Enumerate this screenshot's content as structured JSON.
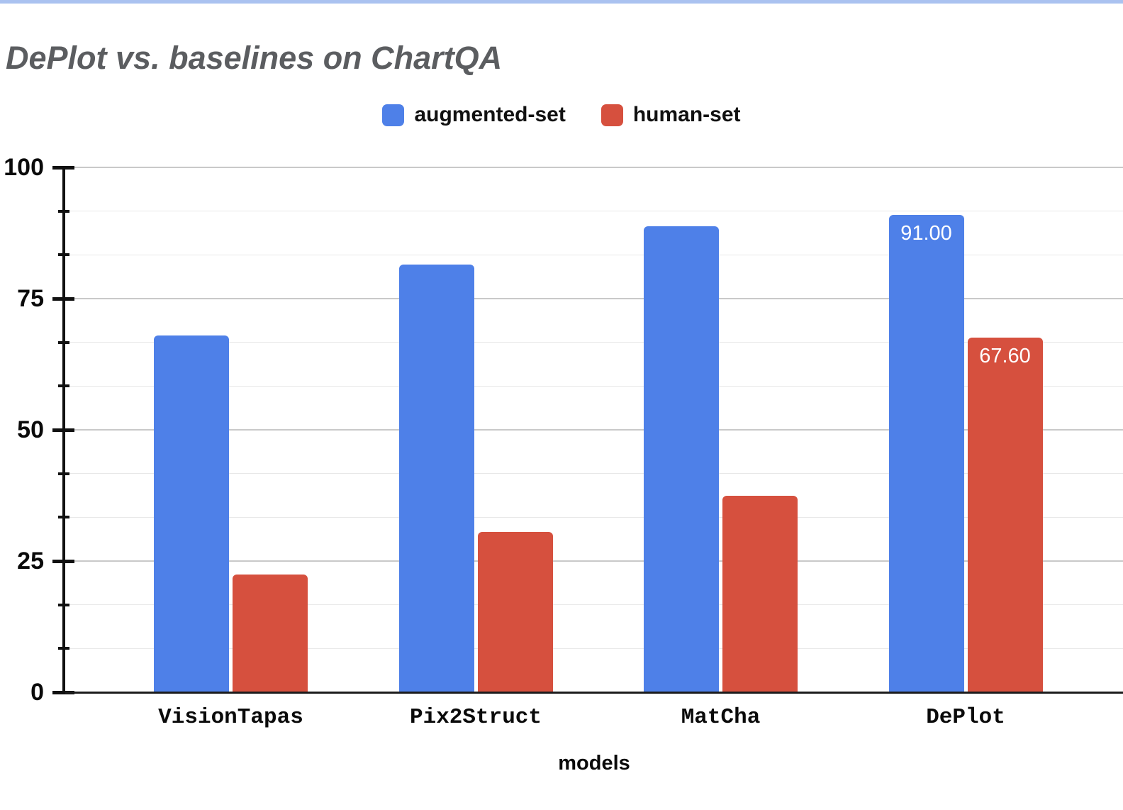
{
  "page": {
    "top_strip_color": "#aac2f0"
  },
  "chart_data": {
    "type": "bar",
    "title": "DePlot vs. baselines on ChartQA",
    "xlabel": "models",
    "ylabel": "",
    "ylim": [
      0,
      100
    ],
    "yticks_major": [
      100,
      75,
      50,
      25,
      0
    ],
    "ytick_minor_step": 8.333,
    "grid": "horizontal",
    "legend_position": "top-center",
    "categories": [
      "VisionTapas",
      "Pix2Struct",
      "MatCha",
      "DePlot"
    ],
    "series": [
      {
        "name": "augmented-set",
        "color": "#4e80e8",
        "values": [
          68.0,
          81.5,
          88.8,
          91.0
        ],
        "data_labels": [
          null,
          null,
          null,
          "91.00"
        ]
      },
      {
        "name": "human-set",
        "color": "#d6503e",
        "values": [
          22.5,
          30.5,
          37.5,
          67.6
        ],
        "data_labels": [
          null,
          null,
          null,
          "67.60"
        ]
      }
    ],
    "data_label_color": "#ffffff",
    "axis_color": "#111111",
    "major_grid_color": "#c9c9c9",
    "minor_grid_color": "#e8e8e8"
  }
}
